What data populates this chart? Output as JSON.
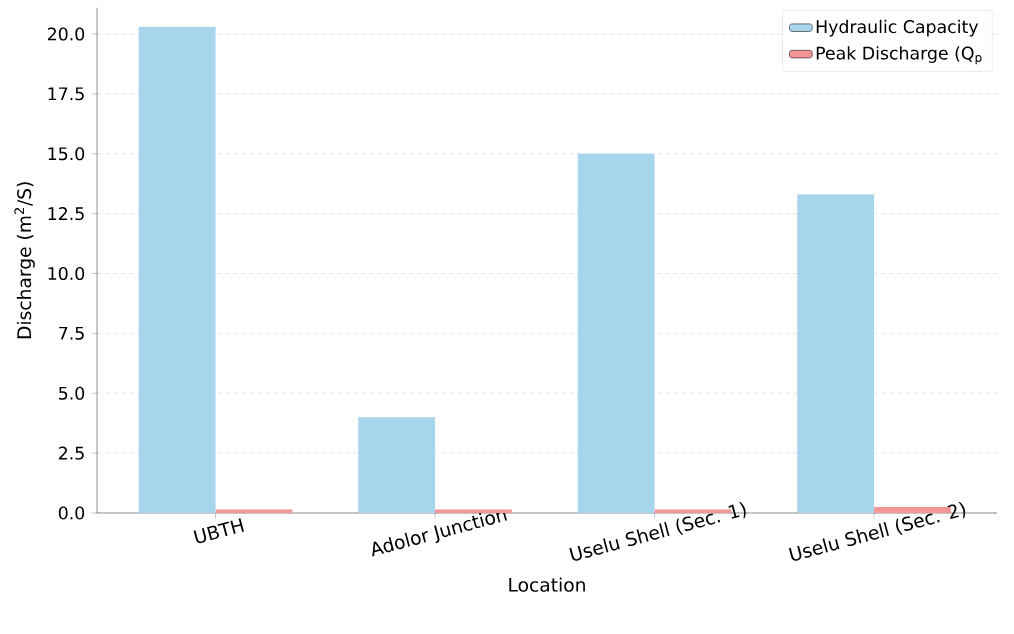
{
  "chart_data": {
    "type": "bar",
    "xlabel": "Location",
    "ylabel": "Discharge (m$^{2}$/S)",
    "categories": [
      "UBTH",
      "Adolor Junction",
      "Uselu Shell (Sec. 1)",
      "Uselu Shell (Sec. 2)"
    ],
    "series": [
      {
        "name": "Hydraulic Capacity",
        "color": "#a6d5ec",
        "values": [
          20.3,
          4.0,
          15.0,
          13.3
        ]
      },
      {
        "name": "Peak Discharge (Q$_{p}$",
        "color": "#f59696",
        "values": [
          0.15,
          0.15,
          0.15,
          0.25
        ]
      }
    ],
    "ylim": [
      0,
      21.1
    ],
    "yticks": [
      {
        "value": 0,
        "label": "0.0"
      },
      {
        "value": 2.5,
        "label": "2.5"
      },
      {
        "value": 5,
        "label": "5.0"
      },
      {
        "value": 7.5,
        "label": "7.5"
      },
      {
        "value": 10,
        "label": "10.0"
      },
      {
        "value": 12.5,
        "label": "12.5"
      },
      {
        "value": 15,
        "label": "15.0"
      },
      {
        "value": 17.5,
        "label": "17.5"
      },
      {
        "value": 20,
        "label": "20.0"
      }
    ],
    "grid": "y",
    "legend": "top right"
  }
}
